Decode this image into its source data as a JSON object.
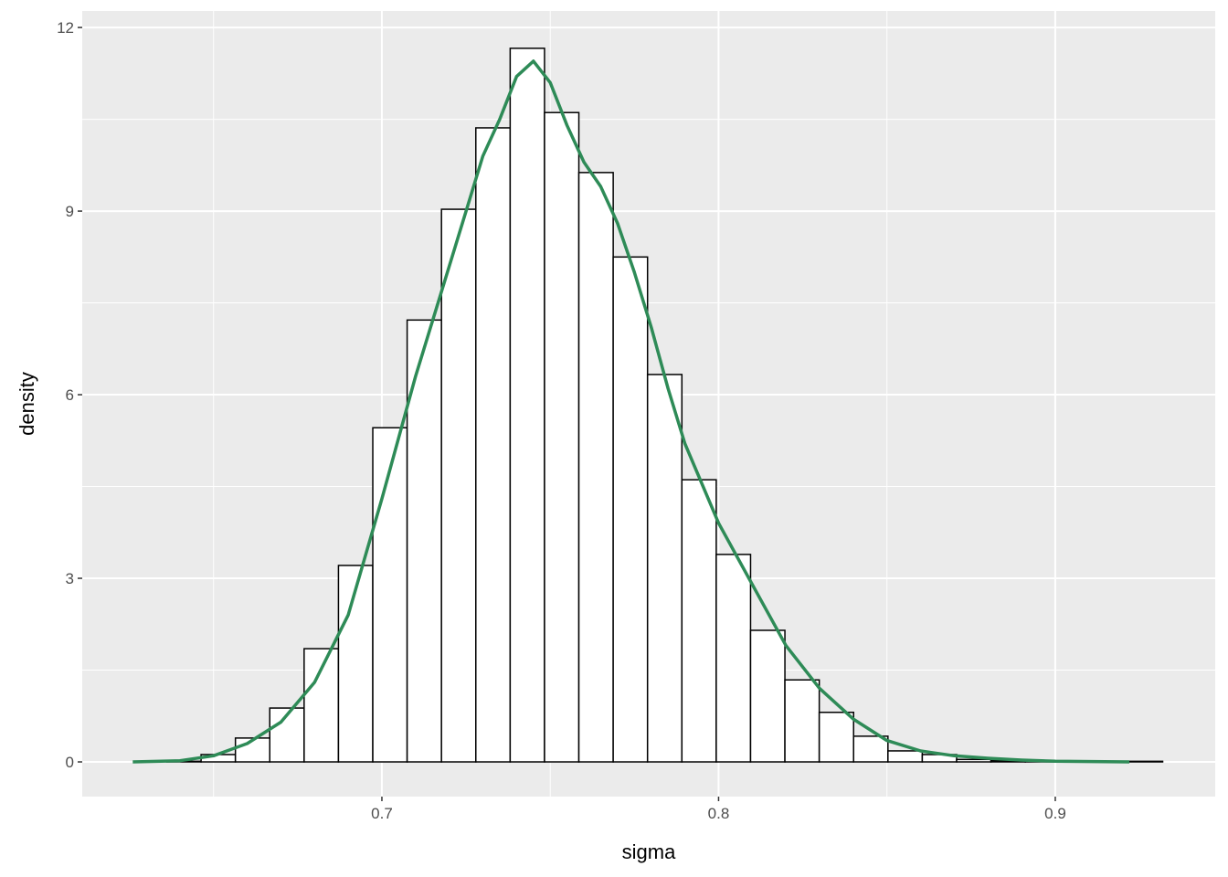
{
  "chart_data": {
    "type": "bar",
    "subtype": "histogram with density curve",
    "xlabel": "sigma",
    "ylabel": "density",
    "xlim": [
      0.611,
      0.9475
    ],
    "ylim": [
      -0.567,
      12.27
    ],
    "xticks": [
      0.7,
      0.8,
      0.9
    ],
    "xtick_labels": [
      "0.7",
      "0.8",
      "0.9"
    ],
    "yticks": [
      0,
      3,
      6,
      9,
      12
    ],
    "ytick_labels": [
      "0",
      "3",
      "6",
      "9",
      "12"
    ],
    "grid": true,
    "bin_start": 0.6259,
    "bin_width": 0.0102,
    "bin_density": [
      0,
      0.01,
      0.12,
      0.39,
      0.88,
      1.85,
      3.21,
      5.46,
      7.22,
      9.03,
      10.36,
      11.66,
      10.61,
      9.63,
      8.25,
      6.33,
      4.61,
      3.39,
      2.15,
      1.34,
      0.81,
      0.42,
      0.18,
      0.12,
      0.04,
      0.02,
      0.01,
      0.01,
      0.01,
      0.01
    ],
    "density_curve": {
      "color": "#2E8B57",
      "x": [
        0.626,
        0.64,
        0.65,
        0.66,
        0.67,
        0.68,
        0.69,
        0.7,
        0.71,
        0.72,
        0.725,
        0.73,
        0.735,
        0.74,
        0.745,
        0.75,
        0.755,
        0.76,
        0.765,
        0.77,
        0.775,
        0.78,
        0.785,
        0.79,
        0.8,
        0.81,
        0.82,
        0.83,
        0.84,
        0.85,
        0.86,
        0.87,
        0.88,
        0.89,
        0.9,
        0.922
      ],
      "y": [
        0,
        0.02,
        0.1,
        0.3,
        0.65,
        1.3,
        2.4,
        4.3,
        6.3,
        8.1,
        9.0,
        9.9,
        10.5,
        11.2,
        11.45,
        11.1,
        10.4,
        9.8,
        9.4,
        8.8,
        8.0,
        7.1,
        6.1,
        5.2,
        3.9,
        2.9,
        1.9,
        1.2,
        0.7,
        0.35,
        0.18,
        0.1,
        0.06,
        0.03,
        0.01,
        0
      ]
    },
    "colors": {
      "panel": "#EBEBEB",
      "grid": "#FFFFFF",
      "bar_fill": "#FFFFFF",
      "bar_outline": "#000000"
    }
  }
}
